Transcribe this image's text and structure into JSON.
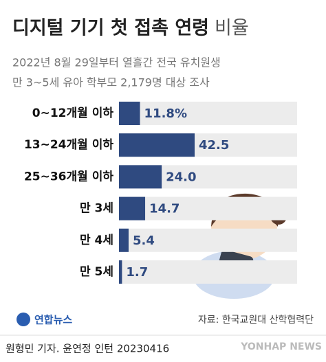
{
  "chart_data": {
    "type": "bar",
    "orientation": "horizontal",
    "title": "디지털 기기 첫 접촉 연령",
    "title_suffix": "비율",
    "subtitle": [
      "2022년 8월 29일부터 열흘간 전국 유치원생",
      "만 3~5세 유아 학부모 2,179명 대상 조사"
    ],
    "categories": [
      "0~12개월 이하",
      "13~24개월 이하",
      "25~36개월 이하",
      "만 3세",
      "만 4세",
      "만 5세"
    ],
    "values": [
      11.8,
      42.5,
      24.0,
      14.7,
      5.4,
      1.7
    ],
    "value_labels": [
      "11.8%",
      "42.5",
      "24.0",
      "14.7",
      "5.4",
      "1.7"
    ],
    "color": "#2f4a80",
    "source": "자료: 한국교원대 산학협력단",
    "logo": "연합뉴스",
    "credit": "원형민 기자. 윤연정 인턴  20230416",
    "watermark": "YONHAP NEWS"
  }
}
